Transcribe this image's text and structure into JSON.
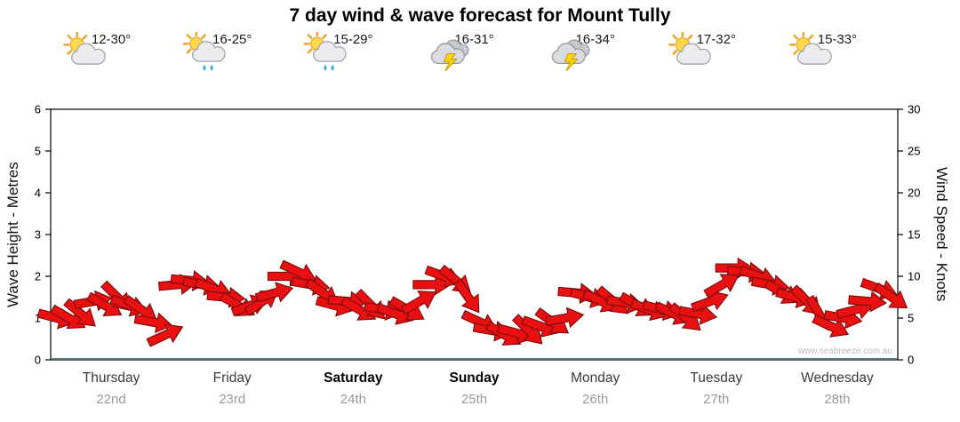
{
  "title": "7 day wind & wave forecast for Mount Tully",
  "watermark": "www.seabreeze.com.au",
  "days": [
    {
      "name": "Thursday",
      "date": "22nd",
      "temp": "12-30°",
      "icon": "partly-cloudy",
      "weekend": false
    },
    {
      "name": "Friday",
      "date": "23rd",
      "temp": "16-25°",
      "icon": "showers",
      "weekend": false
    },
    {
      "name": "Saturday",
      "date": "24th",
      "temp": "15-29°",
      "icon": "showers",
      "weekend": true
    },
    {
      "name": "Sunday",
      "date": "25th",
      "temp": "16-31°",
      "icon": "storm",
      "weekend": true
    },
    {
      "name": "Monday",
      "date": "26th",
      "temp": "16-34°",
      "icon": "storm",
      "weekend": false
    },
    {
      "name": "Tuesday",
      "date": "27th",
      "temp": "17-32°",
      "icon": "partly-cloudy",
      "weekend": false
    },
    {
      "name": "Wednesday",
      "date": "28th",
      "temp": "15-33°",
      "icon": "partly-cloudy",
      "weekend": false
    }
  ],
  "chart_data": {
    "type": "scatter",
    "title": "7 day wind & wave forecast for Mount Tully",
    "ylabel_left": "Wave Height - Metres",
    "ylabel_right": "Wind Speed - Knots",
    "ylim_left": [
      0,
      6
    ],
    "ylim_right": [
      0,
      30
    ],
    "yticks_left": [
      0,
      1,
      2,
      3,
      4,
      5,
      6
    ],
    "yticks_right": [
      0,
      5,
      10,
      15,
      20,
      25,
      30
    ],
    "categories": [
      "Thursday",
      "Friday",
      "Saturday",
      "Sunday",
      "Monday",
      "Tuesday",
      "Wednesday"
    ],
    "samples_per_day": 10,
    "series": [
      {
        "name": "Wind Speed (knots)",
        "values": [
          5,
          5,
          5.5,
          7,
          6.5,
          7.5,
          6.5,
          6,
          4.5,
          3,
          9,
          9.5,
          9,
          8.5,
          7.5,
          6.5,
          6.5,
          7,
          8,
          10,
          10.5,
          9,
          8,
          6.5,
          7,
          6,
          6.5,
          6,
          5.5,
          6,
          7,
          9,
          10,
          9.5,
          7.5,
          4.5,
          3.5,
          3,
          3.2,
          3.5,
          4,
          4.5,
          5,
          8,
          7.5,
          7,
          7,
          6.8,
          6.5,
          6,
          6,
          5.5,
          5,
          5.5,
          7,
          9,
          11,
          10.5,
          10,
          9,
          8,
          7.5,
          7,
          5.5,
          4,
          5,
          6,
          7,
          8.5,
          7.5
        ]
      }
    ],
    "directions_deg": [
      15,
      30,
      40,
      -10,
      30,
      45,
      20,
      35,
      10,
      -25,
      -5,
      5,
      10,
      20,
      5,
      30,
      -20,
      -35,
      -15,
      0,
      25,
      10,
      35,
      15,
      5,
      30,
      45,
      10,
      20,
      30,
      -30,
      0,
      20,
      40,
      55,
      25,
      10,
      30,
      15,
      45,
      20,
      35,
      -10,
      5,
      15,
      25,
      40,
      10,
      30,
      20,
      15,
      25,
      40,
      10,
      -20,
      -30,
      0,
      5,
      20,
      10,
      30,
      15,
      45,
      60,
      25,
      10,
      -15,
      5,
      20,
      35
    ],
    "arrow_color": "#e81010",
    "baseline_color": "#3d8f8f",
    "grid": false,
    "legend": "none"
  }
}
